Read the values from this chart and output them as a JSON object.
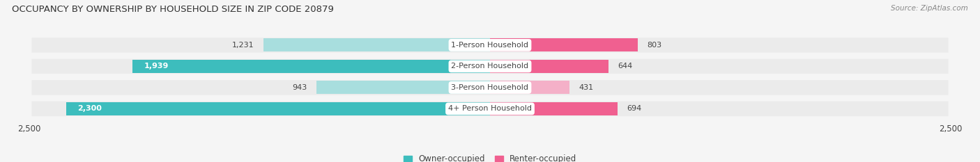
{
  "title": "OCCUPANCY BY OWNERSHIP BY HOUSEHOLD SIZE IN ZIP CODE 20879",
  "source": "Source: ZipAtlas.com",
  "categories": [
    "1-Person Household",
    "2-Person Household",
    "3-Person Household",
    "4+ Person Household"
  ],
  "owner_values": [
    1231,
    1939,
    943,
    2300
  ],
  "renter_values": [
    803,
    644,
    431,
    694
  ],
  "owner_color_strong": "#3dbdbd",
  "owner_color_light": "#a8dede",
  "renter_color_strong": "#f06090",
  "renter_color_light": "#f4b0c8",
  "axis_max": 2500,
  "bg_color": "#f5f5f5",
  "bar_row_color": "#ebebeb",
  "label_color": "#444444",
  "title_color": "#333333",
  "legend_owner": "Owner-occupied",
  "legend_renter": "Renter-occupied",
  "owner_threshold": 1500
}
